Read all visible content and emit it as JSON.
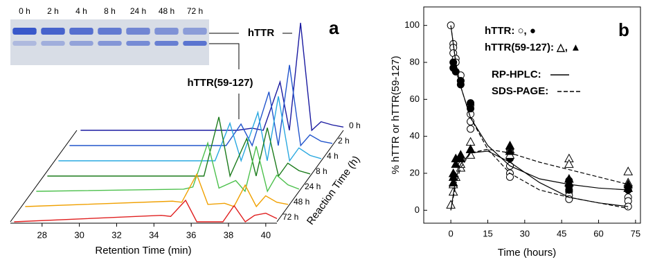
{
  "chart_data": [
    {
      "type": "waterfall",
      "panel": "a",
      "gel_lanes": [
        "0 h",
        "2 h",
        "4 h",
        "8 h",
        "24 h",
        "48 h",
        "72 h"
      ],
      "labels": [
        "hTTR",
        "hTTR(59-127)"
      ],
      "xlabel": "Retention Time (min)",
      "zlabel": "Reaction Time (h)",
      "xlim": [
        26.3,
        40.6
      ],
      "xticks": [
        28,
        30,
        32,
        34,
        36,
        38,
        40
      ],
      "x": [
        26.5,
        34.4,
        34.9,
        35.7,
        36.3,
        37.2,
        37.7,
        38.3,
        38.9,
        39.4,
        40.0,
        40.6
      ],
      "series": [
        {
          "name": "0 h",
          "color": "#1a1aa0",
          "values": [
            0,
            0,
            0,
            2,
            0,
            45,
            0,
            100,
            0,
            8,
            5,
            3
          ]
        },
        {
          "name": "2 h",
          "color": "#2255cc",
          "values": [
            0,
            0,
            0,
            20,
            0,
            50,
            0,
            75,
            0,
            10,
            4,
            2
          ]
        },
        {
          "name": "4 h",
          "color": "#29a8e0",
          "values": [
            0,
            0,
            0,
            35,
            0,
            45,
            0,
            60,
            0,
            12,
            5,
            2
          ]
        },
        {
          "name": "8 h",
          "color": "#1a7a1a",
          "values": [
            0,
            0,
            0,
            55,
            0,
            35,
            0,
            45,
            0,
            12,
            5,
            2
          ]
        },
        {
          "name": "24 h",
          "color": "#4cc04c",
          "values": [
            0,
            2,
            4,
            45,
            3,
            10,
            0,
            42,
            0,
            15,
            6,
            2
          ]
        },
        {
          "name": "48 h",
          "color": "#f0a000",
          "values": [
            0,
            5,
            4,
            30,
            2,
            3,
            0,
            20,
            0,
            10,
            4,
            2
          ]
        },
        {
          "name": "72 h",
          "color": "#e02020",
          "values": [
            0,
            6,
            5,
            20,
            0,
            0,
            0,
            15,
            0,
            6,
            8,
            3
          ]
        }
      ]
    },
    {
      "type": "scatter",
      "panel": "b",
      "xlabel": "Time (hours)",
      "ylabel": "% hTTR or hTTR(59-127)",
      "legend": [
        "hTTR: ○, ●",
        "hTTR(59-127): △, ▲",
        "RP-HPLC:",
        "SDS-PAGE:"
      ],
      "xlim": [
        -11,
        77
      ],
      "ylim": [
        -7,
        110
      ],
      "xticks": [
        0,
        15,
        30,
        45,
        60,
        75
      ],
      "yticks": [
        0,
        20,
        40,
        60,
        80,
        100
      ],
      "series": [
        {
          "marker": "circle",
          "filled": false,
          "x": [
            0,
            1,
            1,
            1,
            2,
            2,
            4,
            4,
            8,
            8,
            8,
            8,
            24,
            24,
            24,
            24,
            48,
            48,
            48,
            72,
            72,
            72
          ],
          "values": [
            100,
            90,
            88,
            85,
            82,
            80,
            73,
            70,
            57,
            52,
            48,
            44,
            28,
            24,
            20,
            18,
            10,
            8,
            6,
            7,
            5,
            2
          ]
        },
        {
          "marker": "circle",
          "filled": true,
          "x": [
            1,
            1,
            2,
            4,
            4,
            8,
            8,
            24,
            24,
            48,
            48,
            48,
            72,
            72
          ],
          "values": [
            80,
            77,
            75,
            70,
            68,
            58,
            55,
            33,
            28,
            16,
            13,
            11,
            13,
            11
          ]
        },
        {
          "marker": "triangle",
          "filled": false,
          "x": [
            0,
            1,
            1,
            2,
            4,
            4,
            8,
            8,
            8,
            24,
            24,
            48,
            48,
            72,
            72
          ],
          "values": [
            3,
            10,
            14,
            18,
            23,
            25,
            37,
            33,
            30,
            33,
            30,
            28,
            25,
            21,
            15
          ]
        },
        {
          "marker": "triangle",
          "filled": true,
          "x": [
            1,
            1,
            1,
            2,
            2,
            4,
            4,
            8,
            24,
            24,
            48,
            48,
            72,
            72
          ],
          "values": [
            15,
            18,
            20,
            25,
            28,
            28,
            30,
            33,
            35,
            32,
            17,
            15,
            14,
            12
          ]
        },
        {
          "marker": "line",
          "dash": false,
          "x": [
            0,
            2,
            4,
            8,
            15,
            24,
            36,
            48,
            60,
            72
          ],
          "values": [
            100,
            80,
            67,
            50,
            35,
            24,
            17,
            14,
            12,
            11
          ]
        },
        {
          "marker": "line",
          "dash": true,
          "x": [
            0,
            2,
            4,
            8,
            15,
            24,
            36,
            48,
            60,
            72
          ],
          "values": [
            100,
            80,
            67,
            50,
            33,
            20,
            11,
            7,
            4,
            1
          ]
        },
        {
          "marker": "line",
          "dash": false,
          "x": [
            0,
            2,
            4,
            8,
            15,
            24,
            36,
            48,
            60,
            72
          ],
          "values": [
            0,
            17,
            25,
            31,
            32,
            26,
            15,
            7,
            4,
            2
          ]
        },
        {
          "marker": "line",
          "dash": true,
          "x": [
            0,
            2,
            4,
            8,
            15,
            24,
            36,
            48,
            60,
            72
          ],
          "values": [
            0,
            14,
            23,
            31,
            33,
            31,
            26,
            22,
            18,
            14
          ]
        }
      ]
    }
  ]
}
